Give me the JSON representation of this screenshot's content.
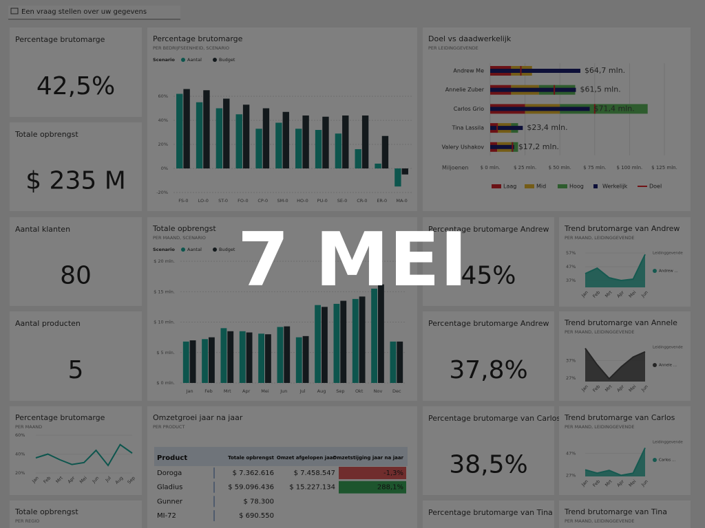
{
  "search": "Een vraag stellen over uw gegevens",
  "overlay_text": "7 MEI",
  "kpis": [
    {
      "title": "Percentage brutomarge",
      "value": "42,5%"
    },
    {
      "title": "Totale opbrengst",
      "value": "$ 235 M"
    },
    {
      "title": "Aantal klanten",
      "value": "80"
    },
    {
      "title": "Aantal producten",
      "value": "5"
    },
    {
      "title": "Percentage brutomarge Andrew",
      "value": "45%"
    },
    {
      "title": "Percentage brutomarge Andrew",
      "value": "37,8%"
    },
    {
      "title": "Percentage brutomarge van Carlos",
      "value": "38,5%"
    },
    {
      "title": "Percentage brutomarge van Tina"
    }
  ],
  "region_tile": {
    "title": "Totale opbrengst",
    "subtitle": "PER REGIO"
  },
  "bar_chart": {
    "type": "bar",
    "title": "Percentage brutomarge",
    "subtitle": "PER BEDRIJFSEENHEID, SCENARIO",
    "legend_title": "Scenario",
    "categories": [
      "FS-0",
      "LO-0",
      "ST-0",
      "FO-0",
      "CP-0",
      "SM-0",
      "HO-0",
      "PU-0",
      "SE-0",
      "CR-0",
      "ER-0",
      "MA-0"
    ],
    "series": [
      {
        "name": "Aantal",
        "color": "#1aab9b",
        "values": [
          62,
          55,
          50,
          45,
          33,
          38,
          33,
          32,
          29,
          16,
          4,
          -15
        ]
      },
      {
        "name": "Budget",
        "color": "#263238",
        "values": [
          66,
          65,
          58,
          53,
          50,
          47,
          44,
          43,
          44,
          44,
          27,
          -5
        ]
      }
    ],
    "ylim": [
      -20,
      60
    ],
    "yticks": [
      {
        "value": 60,
        "label": "60%"
      },
      {
        "value": 40,
        "label": "40%"
      },
      {
        "value": 20,
        "label": "20%"
      },
      {
        "value": 0,
        "label": "0%"
      },
      {
        "value": -20,
        "label": "-20%"
      }
    ]
  },
  "revenue_chart": {
    "type": "bar",
    "title": "Totale opbrengst",
    "subtitle": "PER MAAND, SCENARIO",
    "legend_title": "Scenario",
    "categories": [
      "Jan",
      "Feb",
      "Mrt",
      "Apr",
      "Mei",
      "Jun",
      "Jul",
      "Aug",
      "Sep",
      "Okt",
      "Nov",
      "Dec"
    ],
    "series": [
      {
        "name": "Aantal",
        "color": "#1aab9b",
        "values": [
          6.8,
          7.2,
          9.0,
          8.5,
          8.1,
          9.2,
          7.5,
          12.8,
          13.0,
          13.8,
          15.5,
          6.8
        ]
      },
      {
        "name": "Budget",
        "color": "#263238",
        "values": [
          7.0,
          7.5,
          8.5,
          8.3,
          8.0,
          9.3,
          7.7,
          12.5,
          13.5,
          14.2,
          16.2,
          6.8
        ]
      }
    ],
    "ylim": [
      0,
      20
    ],
    "yticks": [
      {
        "value": 20,
        "label": "$ 20 mln."
      },
      {
        "value": 15,
        "label": "$ 15 mln."
      },
      {
        "value": 10,
        "label": "$ 10 mln."
      },
      {
        "value": 5,
        "label": "$ 5 mln."
      },
      {
        "value": 0,
        "label": "$ 0 mln."
      }
    ]
  },
  "bullet_chart": {
    "type": "bullet",
    "title": "Doel vs daadwerkelijk",
    "subtitle": "PER LEIDINGGEVENDE",
    "axis_label": "Miljoenen",
    "categories": [
      "Andrew Me",
      "Annelie Zuber",
      "Carlos Grio",
      "Tina Lassila",
      "Valery Ushakov"
    ],
    "bands": [
      {
        "name": "Laag",
        "color": "#d7242c",
        "values": [
          15,
          15,
          25,
          5,
          5
        ]
      },
      {
        "name": "Mid",
        "color": "#e9b92f",
        "values": [
          15,
          20,
          25,
          10,
          10
        ]
      },
      {
        "name": "Hoog",
        "color": "#5cb85c",
        "values": [
          0,
          26,
          63,
          5,
          5
        ]
      }
    ],
    "actual": {
      "name": "Werkelijk",
      "color": "#1a1f71",
      "values": [
        64.7,
        61.5,
        71.4,
        23.4,
        17.2
      ],
      "value_labels": [
        "$64,7 mln.",
        "$61,5 mln.",
        "$71,4 mln.",
        "$23,4 mln.",
        "$17,2 mln."
      ]
    },
    "target": {
      "name": "Doel",
      "color": "#e0262d",
      "values": [
        22,
        46,
        75,
        5,
        16
      ]
    },
    "xlim": [
      0,
      125
    ],
    "xticks": [
      {
        "value": 0,
        "label": "$ 0 mln."
      },
      {
        "value": 25,
        "label": "$ 25 mln."
      },
      {
        "value": 50,
        "label": "$ 50 mln."
      },
      {
        "value": 75,
        "label": "$ 75 mln."
      },
      {
        "value": 100,
        "label": "$ 100 mln."
      },
      {
        "value": 125,
        "label": "$ 125 mln."
      }
    ]
  },
  "margin_line": {
    "type": "line",
    "title": "Percentage brutomarge",
    "subtitle": "PER MAAND",
    "color": "#1aab9b",
    "categories": [
      "Jan",
      "Feb",
      "Mrt",
      "Apr",
      "Mei",
      "Jun",
      "Jul",
      "Aug",
      "Sep"
    ],
    "values": [
      36,
      40,
      34,
      29,
      31,
      44,
      28,
      50,
      41
    ],
    "ylim": [
      20,
      60
    ],
    "yticks": [
      {
        "value": 60,
        "label": "60%"
      },
      {
        "value": 40,
        "label": "40%"
      },
      {
        "value": 20,
        "label": "20%"
      }
    ]
  },
  "trends": [
    {
      "type": "area",
      "title": "Trend brutomarge van Andrew",
      "subtitle": "PER MAAND, LEIDINGGEVENDE",
      "legend_title": "Leidinggevende",
      "series_name": "Andrew ...",
      "color": "#2db3a0",
      "categories": [
        "Jan",
        "Feb",
        "Mrt",
        "Apr",
        "Mei",
        "Jun"
      ],
      "values": [
        42,
        46,
        39,
        37,
        38,
        56
      ],
      "ylim": [
        32,
        59
      ],
      "yticks": [
        {
          "value": 57,
          "label": "57%"
        },
        {
          "value": 47,
          "label": "47%"
        },
        {
          "value": 37,
          "label": "37%"
        }
      ]
    },
    {
      "type": "area",
      "title": "Trend brutomarge van Annele",
      "subtitle": "PER MAAND, LEIDINGGEVENDE",
      "legend_title": "Leidinggevende",
      "series_name": "Annele ...",
      "color": "#4a4a4a",
      "categories": [
        "Jan",
        "Feb",
        "Mrt",
        "Apr",
        "Mei",
        "Jun"
      ],
      "values": [
        44,
        34.6,
        26.6,
        33.4,
        39,
        42
      ],
      "ylim": [
        25,
        47
      ],
      "yticks": [
        {
          "value": 37,
          "label": "37%"
        },
        {
          "value": 27,
          "label": "27%"
        }
      ]
    },
    {
      "type": "area",
      "title": "Trend brutomarge van Carlos",
      "subtitle": "PER MAAND, LEIDINGGEVENDE",
      "legend_title": "Leidinggevende",
      "series_name": "Carlos ...",
      "color": "#2db3a0",
      "categories": [
        "Jan",
        "Feb",
        "Mrt",
        "Apr",
        "Mei",
        "Jun"
      ],
      "values": [
        32,
        29,
        31.5,
        27,
        29,
        52
      ],
      "ylim": [
        26,
        61
      ],
      "yticks": [
        {
          "value": 47,
          "label": "47%"
        },
        {
          "value": 27,
          "label": "27%"
        }
      ]
    },
    {
      "type": "area",
      "title": "Trend brutomarge van Tina",
      "subtitle": "PER MAAND, LEIDINGGEVENDE"
    }
  ],
  "table": {
    "title": "Omzetgroei jaar na jaar",
    "subtitle": "PER PRODUCT",
    "header": [
      "Product",
      "Totale opbrengst",
      "Omzet afgelopen jaar",
      "Omzetstijging jaar na jaar"
    ],
    "rows": [
      [
        "Doroga",
        "$ 7.362.616",
        "$ 7.458.547",
        "-1,3%"
      ],
      [
        "Gladius",
        "$ 59.096.436",
        "$ 15.227.134",
        "288,1%"
      ],
      [
        "Gunner",
        "$ 78.300"
      ],
      [
        "MI-72",
        "$ 690.550"
      ]
    ],
    "growth_colors": [
      "#e05a5a",
      "#3aaa5a"
    ]
  }
}
